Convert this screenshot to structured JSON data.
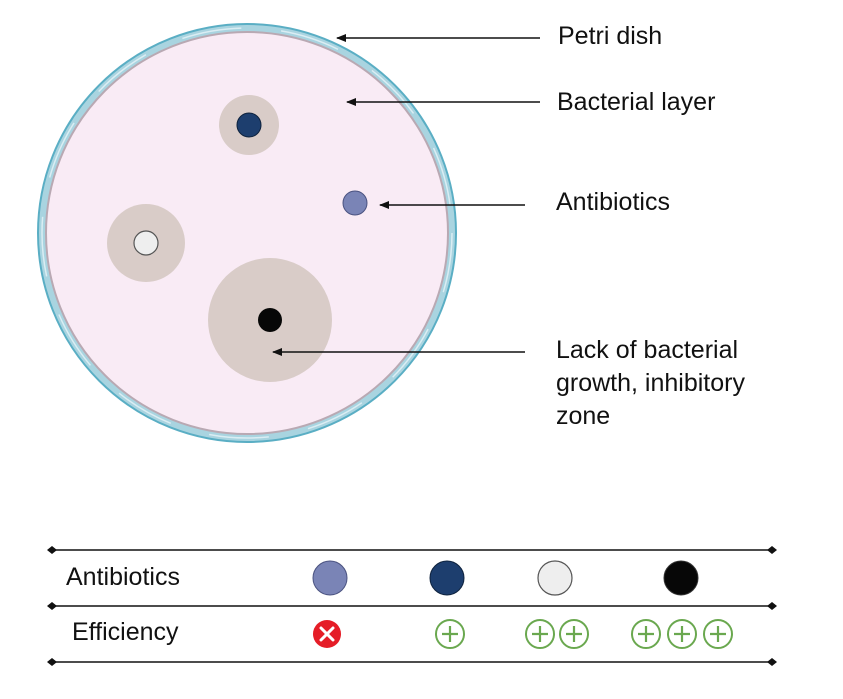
{
  "diagram": {
    "labels": {
      "petri_dish": "Petri dish",
      "bacterial_layer": "Bacterial layer",
      "antibiotics": "Antibiotics",
      "inhibitory_zone_line1": "Lack of bacterial",
      "inhibitory_zone_line2": "growth, inhibitory",
      "inhibitory_zone_line3": "zone"
    },
    "colors": {
      "dish_rim": "#a9d4e0",
      "dish_rim_outline": "#5aaec4",
      "bacterial_layer": "#f9ebf5",
      "inhibitory_zone": "#d9ccc8",
      "antibiotic_lavender": "#7a84b6",
      "antibiotic_navy": "#1d3e6e",
      "antibiotic_white": "#eeeeee",
      "antibiotic_black": "#070707",
      "efficiency_plus": "#6aa84f",
      "efficiency_none": "#e51d27"
    }
  },
  "table": {
    "row_antibiotics_label": "Antibiotics",
    "row_efficiency_label": "Efficiency",
    "antibiotics": [
      {
        "color_name": "lavender",
        "efficiency_level": 0,
        "efficiency_icon": "cross-icon"
      },
      {
        "color_name": "navy",
        "efficiency_level": 1,
        "efficiency_icon": "plus-icon"
      },
      {
        "color_name": "white",
        "efficiency_level": 2,
        "efficiency_icon": "plus-icon"
      },
      {
        "color_name": "black",
        "efficiency_level": 3,
        "efficiency_icon": "plus-icon"
      }
    ]
  }
}
